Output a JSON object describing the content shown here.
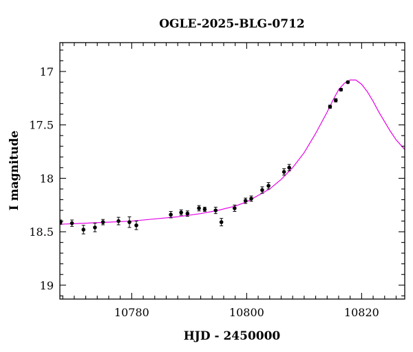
{
  "chart_data": {
    "type": "scatter",
    "title": "OGLE-2025-BLG-0712",
    "xlabel": "HJD - 2450000",
    "ylabel": "I magnitude",
    "xlim": [
      10767.5,
      10827.5
    ],
    "ylim": [
      19.13,
      16.73
    ],
    "y_inverted": true,
    "x_ticks": [
      10780,
      10800,
      10820
    ],
    "x_tick_labels": [
      "10780",
      "10800",
      "10820"
    ],
    "y_ticks": [
      17,
      17.5,
      18,
      18.5,
      19
    ],
    "y_tick_labels": [
      "17",
      "17.5",
      "18",
      "18.5",
      "19"
    ],
    "grid": false,
    "series": [
      {
        "kind": "points_with_errors",
        "color": "#000000",
        "points": [
          {
            "x": 10767.6,
            "y": 18.41,
            "err": 0.02
          },
          {
            "x": 10769.6,
            "y": 18.42,
            "err": 0.03
          },
          {
            "x": 10771.6,
            "y": 18.48,
            "err": 0.04
          },
          {
            "x": 10773.6,
            "y": 18.46,
            "err": 0.04
          },
          {
            "x": 10775.0,
            "y": 18.41,
            "err": 0.025
          },
          {
            "x": 10777.7,
            "y": 18.4,
            "err": 0.035
          },
          {
            "x": 10779.6,
            "y": 18.41,
            "err": 0.05
          },
          {
            "x": 10780.8,
            "y": 18.44,
            "err": 0.04
          },
          {
            "x": 10786.8,
            "y": 18.34,
            "err": 0.03
          },
          {
            "x": 10788.6,
            "y": 18.32,
            "err": 0.025
          },
          {
            "x": 10789.7,
            "y": 18.33,
            "err": 0.025
          },
          {
            "x": 10791.7,
            "y": 18.28,
            "err": 0.025
          },
          {
            "x": 10792.7,
            "y": 18.29,
            "err": 0.02
          },
          {
            "x": 10794.6,
            "y": 18.3,
            "err": 0.03
          },
          {
            "x": 10795.6,
            "y": 18.41,
            "err": 0.035
          },
          {
            "x": 10797.9,
            "y": 18.28,
            "err": 0.03
          },
          {
            "x": 10799.8,
            "y": 18.21,
            "err": 0.025
          },
          {
            "x": 10800.8,
            "y": 18.19,
            "err": 0.025
          },
          {
            "x": 10802.7,
            "y": 18.11,
            "err": 0.03
          },
          {
            "x": 10803.8,
            "y": 18.07,
            "err": 0.03
          },
          {
            "x": 10806.5,
            "y": 17.94,
            "err": 0.03
          },
          {
            "x": 10807.4,
            "y": 17.9,
            "err": 0.03
          },
          {
            "x": 10814.5,
            "y": 17.33,
            "err": 0.015
          },
          {
            "x": 10815.5,
            "y": 17.27,
            "err": 0.015
          },
          {
            "x": 10816.4,
            "y": 17.17,
            "err": 0.012
          },
          {
            "x": 10817.6,
            "y": 17.1,
            "err": 0.01
          }
        ]
      },
      {
        "kind": "model_curve",
        "color": "#e600e6",
        "x": [
          10767.5,
          10772,
          10776,
          10780,
          10784,
          10788,
          10792,
          10795,
          10798,
          10800,
          10802,
          10804,
          10806,
          10808,
          10810,
          10812,
          10814,
          10815,
          10816,
          10817,
          10818,
          10819,
          10820,
          10821,
          10822,
          10823,
          10824,
          10825,
          10826,
          10827.5
        ],
        "y": [
          18.43,
          18.42,
          18.41,
          18.4,
          18.38,
          18.36,
          18.33,
          18.3,
          18.26,
          18.22,
          18.16,
          18.1,
          18.01,
          17.9,
          17.76,
          17.58,
          17.38,
          17.27,
          17.17,
          17.11,
          17.08,
          17.08,
          17.12,
          17.19,
          17.28,
          17.38,
          17.47,
          17.56,
          17.64,
          17.73
        ]
      }
    ]
  }
}
